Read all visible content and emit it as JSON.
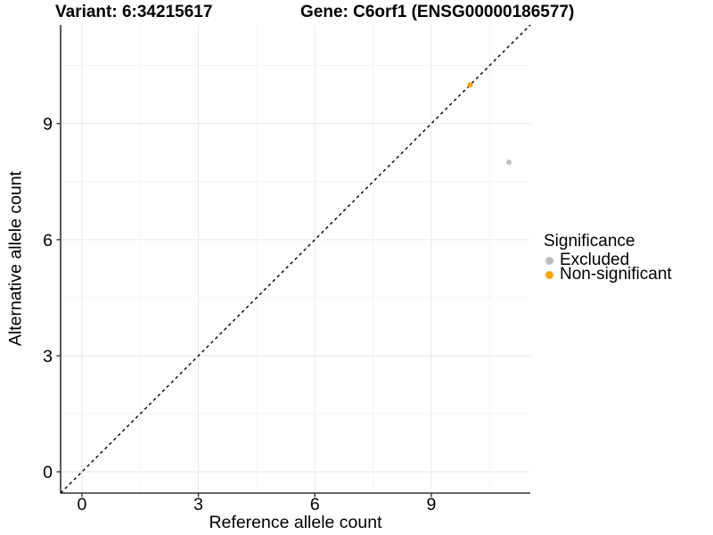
{
  "title_left": "Variant: 6:34215617",
  "title_right": "Gene: C6orf1 (ENSG00000186577)",
  "colors": {
    "axis_line": "#333333",
    "tick_mark": "#333333",
    "grid_major": "#EBEBEB",
    "grid_minor": "#F4F4F4",
    "text": "#000000",
    "reference_line": "#000000",
    "excluded": "#BEBEBE",
    "non_significant": "#FFA500"
  },
  "chart_data": {
    "type": "scatter",
    "title": "Variant: 6:34215617    Gene: C6orf1 (ENSG00000186577)",
    "xlabel": "Reference allele count",
    "ylabel": "Alternative allele count",
    "xlim": [
      -0.55,
      11.55
    ],
    "ylim": [
      -0.55,
      11.55
    ],
    "xticks": [
      0,
      3,
      6,
      9
    ],
    "yticks": [
      0,
      3,
      6,
      9
    ],
    "minor_ticks": [
      1.5,
      4.5,
      7.5,
      10.5
    ],
    "grid": true,
    "reference_line": {
      "equation": "y = x",
      "style": "dashed",
      "color": "#000000"
    },
    "series": [
      {
        "name": "Excluded",
        "color": "#BEBEBE",
        "points": [
          {
            "x": 11,
            "y": 8
          }
        ]
      },
      {
        "name": "Non-significant",
        "color": "#FFA500",
        "points": [
          {
            "x": 10,
            "y": 10
          }
        ]
      }
    ],
    "legend": {
      "title": "Significance",
      "position": "right",
      "items": [
        {
          "label": "Excluded",
          "color": "#BEBEBE"
        },
        {
          "label": "Non-significant",
          "color": "#FFA500"
        }
      ]
    }
  }
}
